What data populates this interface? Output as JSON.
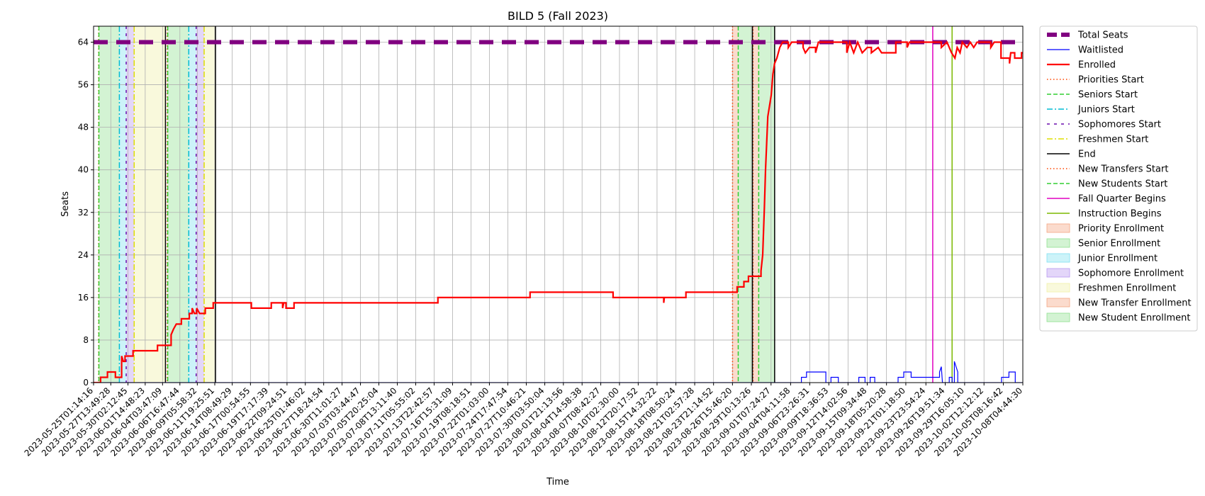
{
  "chart_data": {
    "type": "line",
    "title": "BILD 5 (Fall 2023)",
    "xlabel": "Time",
    "ylabel": "Seats",
    "ylim": [
      0,
      67
    ],
    "xlim": [
      "2023-05-25T01:14:16",
      "2023-10-08T04:44:30"
    ],
    "y_ticks": [
      0,
      8,
      16,
      24,
      32,
      40,
      48,
      56,
      64
    ],
    "x_ticks": [
      "2023-05-25T01:14:16",
      "2023-05-27T13:49:28",
      "2023-05-30T02:12:45",
      "2023-06-01T14:48:23",
      "2023-06-04T03:47:09",
      "2023-06-06T16:47:44",
      "2023-06-09T05:58:32",
      "2023-06-11T19:25:51",
      "2023-06-14T08:49:29",
      "2023-06-17T00:54:55",
      "2023-06-19T17:17:39",
      "2023-06-22T09:24:51",
      "2023-06-25T01:46:02",
      "2023-06-27T18:24:54",
      "2023-06-30T11:01:27",
      "2023-07-03T03:44:47",
      "2023-07-05T20:25:04",
      "2023-07-08T13:11:40",
      "2023-07-11T05:55:02",
      "2023-07-13T22:42:57",
      "2023-07-16T15:31:09",
      "2023-07-19T08:18:51",
      "2023-07-22T01:03:00",
      "2023-07-24T17:47:54",
      "2023-07-27T10:46:21",
      "2023-07-30T03:50:04",
      "2023-08-01T21:13:56",
      "2023-08-04T14:58:38",
      "2023-08-07T08:42:27",
      "2023-08-10T02:30:00",
      "2023-08-12T20:17:52",
      "2023-08-15T14:32:22",
      "2023-08-18T08:50:24",
      "2023-08-21T02:57:28",
      "2023-08-23T21:14:52",
      "2023-08-26T15:46:20",
      "2023-08-29T10:13:26",
      "2023-09-01T07:24:27",
      "2023-09-04T04:11:58",
      "2023-09-06T23:26:31",
      "2023-09-09T18:36:53",
      "2023-09-12T14:02:56",
      "2023-09-15T09:34:48",
      "2023-09-18T05:20:28",
      "2023-09-21T01:18:50",
      "2023-09-23T23:54:24",
      "2023-09-26T19:51:34",
      "2023-09-29T16:05:10",
      "2023-10-02T12:12:12",
      "2023-10-05T08:16:42",
      "2023-10-08T04:44:30"
    ],
    "legend_position": "outside-right",
    "grid": true,
    "series": [
      {
        "name": "Total Seats",
        "color": "#800080",
        "style": "dashed-thick",
        "points": [
          [
            "2023-05-25T01:14:16",
            64
          ],
          [
            "2023-10-08T04:44:30",
            64
          ]
        ]
      },
      {
        "name": "Waitlisted",
        "color": "#0000ff",
        "style": "solid-thin",
        "points": [
          [
            "2023-05-25T01:14:16",
            0
          ],
          [
            "2023-09-05T18:00:00",
            0
          ],
          [
            "2023-09-05T18:00:00",
            1
          ],
          [
            "2023-09-06T12:00:00",
            1
          ],
          [
            "2023-09-06T12:00:00",
            2
          ],
          [
            "2023-09-09T08:00:00",
            2
          ],
          [
            "2023-09-09T08:00:00",
            0
          ],
          [
            "2023-09-10T02:00:00",
            0
          ],
          [
            "2023-09-10T02:00:00",
            1
          ],
          [
            "2023-09-11T04:00:00",
            1
          ],
          [
            "2023-09-11T04:00:00",
            0
          ],
          [
            "2023-09-14T04:00:00",
            0
          ],
          [
            "2023-09-14T04:00:00",
            1
          ],
          [
            "2023-09-15T02:00:00",
            1
          ],
          [
            "2023-09-15T02:00:00",
            0
          ],
          [
            "2023-09-15T20:00:00",
            0
          ],
          [
            "2023-09-15T20:00:00",
            1
          ],
          [
            "2023-09-16T12:00:00",
            1
          ],
          [
            "2023-09-16T12:00:00",
            0
          ],
          [
            "2023-09-19T22:00:00",
            0
          ],
          [
            "2023-09-19T22:00:00",
            1
          ],
          [
            "2023-09-20T18:00:00",
            1
          ],
          [
            "2023-09-20T18:00:00",
            2
          ],
          [
            "2023-09-21T20:00:00",
            2
          ],
          [
            "2023-09-21T20:00:00",
            1
          ],
          [
            "2023-09-26T00:00:00",
            1
          ],
          [
            "2023-09-26T00:00:00",
            2
          ],
          [
            "2023-09-26T06:00:00",
            3
          ],
          [
            "2023-09-26T10:00:00",
            0
          ],
          [
            "2023-09-27T10:00:00",
            0
          ],
          [
            "2023-09-27T10:00:00",
            1
          ],
          [
            "2023-09-27T20:00:00",
            1
          ],
          [
            "2023-09-27T20:00:00",
            0
          ],
          [
            "2023-09-28T04:00:00",
            0
          ],
          [
            "2023-09-28T04:00:00",
            4
          ],
          [
            "2023-09-28T10:00:00",
            3
          ],
          [
            "2023-09-28T16:00:00",
            2
          ],
          [
            "2023-09-28T16:00:00",
            0
          ],
          [
            "2023-10-05T02:00:00",
            0
          ],
          [
            "2023-10-05T02:00:00",
            1
          ],
          [
            "2023-10-06T04:00:00",
            1
          ],
          [
            "2023-10-06T04:00:00",
            2
          ],
          [
            "2023-10-07T02:00:00",
            2
          ],
          [
            "2023-10-07T02:00:00",
            0
          ],
          [
            "2023-10-08T04:44:30",
            0
          ]
        ]
      },
      {
        "name": "Enrolled",
        "color": "#ff0000",
        "style": "solid-thick",
        "points": [
          [
            "2023-05-25T01:14:16",
            0
          ],
          [
            "2023-05-26T02:00:00",
            0
          ],
          [
            "2023-05-26T02:00:00",
            1
          ],
          [
            "2023-05-27T02:00:00",
            1
          ],
          [
            "2023-05-27T02:00:00",
            2
          ],
          [
            "2023-05-28T06:00:00",
            2
          ],
          [
            "2023-05-28T06:00:00",
            1
          ],
          [
            "2023-05-29T04:00:00",
            1
          ],
          [
            "2023-05-29T04:00:00",
            5
          ],
          [
            "2023-05-29T10:00:00",
            4
          ],
          [
            "2023-05-29T16:00:00",
            4
          ],
          [
            "2023-05-29T16:00:00",
            5
          ],
          [
            "2023-05-30T20:00:00",
            5
          ],
          [
            "2023-05-30T20:00:00",
            6
          ],
          [
            "2023-06-03T10:00:00",
            6
          ],
          [
            "2023-06-03T10:00:00",
            7
          ],
          [
            "2023-06-05T10:00:00",
            7
          ],
          [
            "2023-06-05T10:00:00",
            9
          ],
          [
            "2023-06-05T18:00:00",
            10
          ],
          [
            "2023-06-06T04:00:00",
            11
          ],
          [
            "2023-06-06T22:00:00",
            11
          ],
          [
            "2023-06-06T22:00:00",
            12
          ],
          [
            "2023-06-08T02:00:00",
            12
          ],
          [
            "2023-06-08T02:00:00",
            13
          ],
          [
            "2023-06-08T12:00:00",
            13
          ],
          [
            "2023-06-08T12:00:00",
            14
          ],
          [
            "2023-06-08T20:00:00",
            13
          ],
          [
            "2023-06-09T04:00:00",
            13
          ],
          [
            "2023-06-09T04:00:00",
            14
          ],
          [
            "2023-06-09T14:00:00",
            13
          ],
          [
            "2023-06-10T10:00:00",
            13
          ],
          [
            "2023-06-10T10:00:00",
            14
          ],
          [
            "2023-06-11T14:00:00",
            14
          ],
          [
            "2023-06-11T14:00:00",
            15
          ],
          [
            "2023-06-17T04:00:00",
            15
          ],
          [
            "2023-06-17T04:00:00",
            14
          ],
          [
            "2023-06-20T02:00:00",
            14
          ],
          [
            "2023-06-20T02:00:00",
            15
          ],
          [
            "2023-06-21T18:00:00",
            15
          ],
          [
            "2023-06-21T18:00:00",
            14
          ],
          [
            "2023-06-21T22:00:00",
            15
          ],
          [
            "2023-06-22T06:00:00",
            15
          ],
          [
            "2023-06-22T06:00:00",
            14
          ],
          [
            "2023-06-23T10:00:00",
            14
          ],
          [
            "2023-06-23T10:00:00",
            15
          ],
          [
            "2023-07-14T12:00:00",
            15
          ],
          [
            "2023-07-14T12:00:00",
            16
          ],
          [
            "2023-07-28T00:00:00",
            16
          ],
          [
            "2023-07-28T00:00:00",
            17
          ],
          [
            "2023-08-09T04:00:00",
            17
          ],
          [
            "2023-08-09T04:00:00",
            16
          ],
          [
            "2023-08-16T14:00:00",
            16
          ],
          [
            "2023-08-16T14:00:00",
            15
          ],
          [
            "2023-08-16T16:00:00",
            16
          ],
          [
            "2023-08-19T20:00:00",
            16
          ],
          [
            "2023-08-19T20:00:00",
            17
          ],
          [
            "2023-08-27T08:00:00",
            17
          ],
          [
            "2023-08-27T08:00:00",
            18
          ],
          [
            "2023-08-28T08:00:00",
            18
          ],
          [
            "2023-08-28T08:00:00",
            19
          ],
          [
            "2023-08-29T00:00:00",
            19
          ],
          [
            "2023-08-29T00:00:00",
            20
          ],
          [
            "2023-08-30T20:00:00",
            20
          ],
          [
            "2023-08-30T20:00:00",
            21
          ],
          [
            "2023-08-31T02:00:00",
            24
          ],
          [
            "2023-08-31T08:00:00",
            33
          ],
          [
            "2023-08-31T12:00:00",
            40
          ],
          [
            "2023-08-31T16:00:00",
            45
          ],
          [
            "2023-08-31T20:00:00",
            50
          ],
          [
            "2023-09-01T02:00:00",
            52
          ],
          [
            "2023-09-01T08:00:00",
            54
          ],
          [
            "2023-09-01T14:00:00",
            58
          ],
          [
            "2023-09-01T20:00:00",
            60
          ],
          [
            "2023-09-02T04:00:00",
            61
          ],
          [
            "2023-09-02T14:00:00",
            63
          ],
          [
            "2023-09-03T00:00:00",
            64
          ],
          [
            "2023-09-03T20:00:00",
            64
          ],
          [
            "2023-09-03T20:00:00",
            63
          ],
          [
            "2023-09-04T08:00:00",
            64
          ],
          [
            "2023-09-06T00:00:00",
            64
          ],
          [
            "2023-09-06T00:00:00",
            63
          ],
          [
            "2023-09-06T08:00:00",
            62
          ],
          [
            "2023-09-06T22:00:00",
            63
          ],
          [
            "2023-09-07T20:00:00",
            63
          ],
          [
            "2023-09-07T20:00:00",
            62
          ],
          [
            "2023-09-08T06:00:00",
            64
          ],
          [
            "2023-09-12T10:00:00",
            64
          ],
          [
            "2023-09-12T10:00:00",
            62
          ],
          [
            "2023-09-12T20:00:00",
            64
          ],
          [
            "2023-09-13T10:00:00",
            62
          ],
          [
            "2023-09-14T00:00:00",
            64
          ],
          [
            "2023-09-14T16:00:00",
            62
          ],
          [
            "2023-09-15T10:00:00",
            63
          ],
          [
            "2023-09-16T00:00:00",
            63
          ],
          [
            "2023-09-16T00:00:00",
            62
          ],
          [
            "2023-09-17T00:00:00",
            63
          ],
          [
            "2023-09-17T12:00:00",
            62
          ],
          [
            "2023-09-19T14:00:00",
            62
          ],
          [
            "2023-09-19T14:00:00",
            64
          ],
          [
            "2023-09-21T06:00:00",
            64
          ],
          [
            "2023-09-21T06:00:00",
            63
          ],
          [
            "2023-09-21T14:00:00",
            64
          ],
          [
            "2023-09-26T06:00:00",
            64
          ],
          [
            "2023-09-26T06:00:00",
            63
          ],
          [
            "2023-09-27T02:00:00",
            64
          ],
          [
            "2023-09-27T18:00:00",
            62
          ],
          [
            "2023-09-28T06:00:00",
            61
          ],
          [
            "2023-09-28T14:00:00",
            63
          ],
          [
            "2023-09-29T00:00:00",
            62
          ],
          [
            "2023-09-29T08:00:00",
            64
          ],
          [
            "2023-09-30T00:00:00",
            63
          ],
          [
            "2023-09-30T12:00:00",
            64
          ],
          [
            "2023-10-01T00:00:00",
            63
          ],
          [
            "2023-10-01T12:00:00",
            64
          ],
          [
            "2023-10-03T12:00:00",
            64
          ],
          [
            "2023-10-03T12:00:00",
            63
          ],
          [
            "2023-10-04T00:00:00",
            64
          ],
          [
            "2023-10-05T00:00:00",
            64
          ],
          [
            "2023-10-05T00:00:00",
            61
          ],
          [
            "2023-10-06T06:00:00",
            61
          ],
          [
            "2023-10-06T06:00:00",
            60
          ],
          [
            "2023-10-06T10:00:00",
            62
          ],
          [
            "2023-10-07T00:00:00",
            62
          ],
          [
            "2023-10-07T00:00:00",
            61
          ],
          [
            "2023-10-08T00:00:00",
            61
          ],
          [
            "2023-10-08T00:00:00",
            62
          ],
          [
            "2023-10-08T04:44:30",
            62
          ]
        ]
      }
    ],
    "markers": [
      {
        "name": "Priorities Start",
        "color": "#ff4500",
        "style": "dotted",
        "times": [
          "2023-05-25T19:00:00",
          "2023-06-04T20:00:00",
          "2023-08-26T16:00:00",
          "2023-08-29T16:00:00"
        ]
      },
      {
        "name": "Seniors Start",
        "color": "#32cd32",
        "style": "dashed",
        "times": [
          "2023-05-25T20:00:00",
          "2023-06-04T22:00:00"
        ]
      },
      {
        "name": "Juniors Start",
        "color": "#00bcd4",
        "style": "dashdot",
        "times": [
          "2023-05-28T20:00:00",
          "2023-06-08T00:00:00"
        ]
      },
      {
        "name": "Sophomores Start",
        "color": "#6a0dad",
        "style": "densedash",
        "times": [
          "2023-05-29T20:00:00",
          "2023-06-09T02:00:00"
        ]
      },
      {
        "name": "Freshmen Start",
        "color": "#dddd00",
        "style": "dashdot",
        "times": [
          "2023-05-31T00:00:00",
          "2023-06-10T06:00:00"
        ]
      },
      {
        "name": "End",
        "color": "#000000",
        "style": "solid",
        "times": [
          "2023-06-04T14:00:00",
          "2023-06-11T22:00:00",
          "2023-08-29T14:00:00",
          "2023-09-01T20:00:00"
        ]
      },
      {
        "name": "New Transfers Start",
        "color": "#ff4500",
        "style": "dotted",
        "times": []
      },
      {
        "name": "New Students Start",
        "color": "#32cd32",
        "style": "dashed",
        "times": [
          "2023-08-27T12:00:00",
          "2023-08-30T12:00:00"
        ]
      },
      {
        "name": "Fall Quarter Begins",
        "color": "#e000c0",
        "style": "solid",
        "times": [
          "2023-09-25T00:00:00"
        ]
      },
      {
        "name": "Instruction Begins",
        "color": "#7cb800",
        "style": "solid",
        "times": [
          "2023-09-27T20:00:00"
        ]
      }
    ],
    "periods": [
      {
        "name": "Priority Enrollment",
        "color": "#f4a582",
        "spans": [
          [
            "2023-05-25T19:00:00",
            "2023-05-25T20:00:00"
          ],
          [
            "2023-06-04T20:00:00",
            "2023-06-04T22:00:00"
          ]
        ]
      },
      {
        "name": "Senior Enrollment",
        "color": "#90e090",
        "spans": [
          [
            "2023-05-25T20:00:00",
            "2023-05-28T20:00:00"
          ],
          [
            "2023-06-04T22:00:00",
            "2023-06-08T00:00:00"
          ]
        ]
      },
      {
        "name": "Junior Enrollment",
        "color": "#80e0f0",
        "spans": [
          [
            "2023-05-28T20:00:00",
            "2023-05-29T20:00:00"
          ],
          [
            "2023-06-08T00:00:00",
            "2023-06-09T02:00:00"
          ]
        ]
      },
      {
        "name": "Sophomore Enrollment",
        "color": "#b898f0",
        "spans": [
          [
            "2023-05-29T20:00:00",
            "2023-05-31T00:00:00"
          ],
          [
            "2023-06-09T02:00:00",
            "2023-06-10T06:00:00"
          ]
        ]
      },
      {
        "name": "Freshmen Enrollment",
        "color": "#f0f0a8",
        "spans": [
          [
            "2023-05-31T00:00:00",
            "2023-06-04T14:00:00"
          ],
          [
            "2023-06-10T06:00:00",
            "2023-06-11T22:00:00"
          ]
        ]
      },
      {
        "name": "New Transfer Enrollment",
        "color": "#f4a582",
        "spans": [
          [
            "2023-08-26T16:00:00",
            "2023-08-27T12:00:00"
          ],
          [
            "2023-08-29T16:00:00",
            "2023-08-30T12:00:00"
          ]
        ]
      },
      {
        "name": "New Student Enrollment",
        "color": "#90e090",
        "spans": [
          [
            "2023-08-27T12:00:00",
            "2023-08-29T14:00:00"
          ],
          [
            "2023-08-30T12:00:00",
            "2023-09-01T20:00:00"
          ]
        ]
      }
    ]
  }
}
